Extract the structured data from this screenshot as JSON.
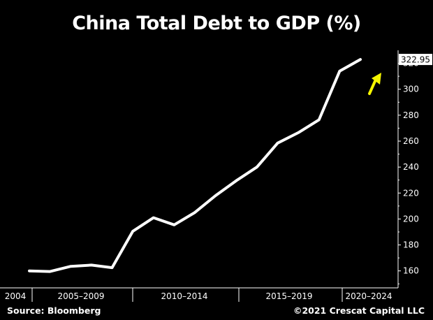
{
  "chart_data": {
    "type": "line",
    "title": "China Total Debt to GDP (%)",
    "ylim": [
      148,
      330
    ],
    "yticks": [
      160,
      180,
      200,
      220,
      240,
      260,
      280,
      300,
      "320"
    ],
    "x_labels": [
      "2004",
      "2005–2009",
      "2010–2014",
      "2015–2019",
      "2020–2024"
    ],
    "series": [
      {
        "color": "#ffffff",
        "values": [
          160,
          159.5,
          163.5,
          164.5,
          162.5,
          190.5,
          201,
          195.5,
          205,
          218,
          229.5,
          240,
          258.5,
          266.5,
          276.5,
          314,
          322.95
        ]
      }
    ],
    "last_value_label": "322.95",
    "annotation": {
      "type": "arrow",
      "color": "#f5f500",
      "direction": "up"
    },
    "grid": false
  },
  "footer": {
    "source": "Source: Bloomberg",
    "copyright": "©2021 Crescat Capital LLC"
  }
}
